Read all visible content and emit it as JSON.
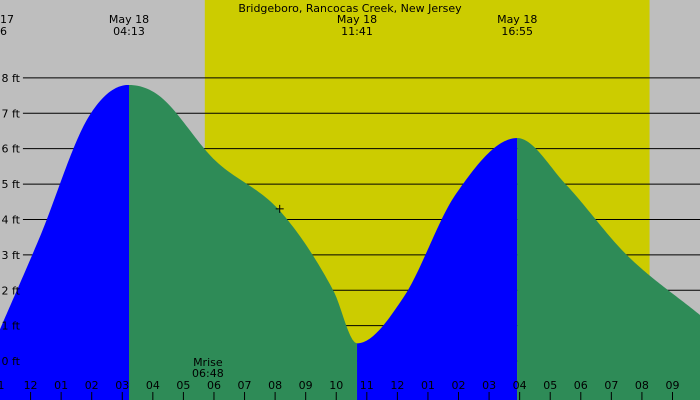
{
  "chart_data": {
    "type": "area",
    "title": "Bridgeboro, Rancocas Creek, New Jersey",
    "x_unit": "hour of day",
    "xlim": [
      0.0,
      22.9
    ],
    "ylim": [
      -1.1,
      10.2
    ],
    "y_ticks": [
      0,
      1,
      2,
      3,
      4,
      5,
      6,
      7,
      8
    ],
    "y_tick_labels": [
      "0 ft",
      "1 ft",
      "2 ft",
      "3 ft",
      "4 ft",
      "5 ft",
      "6 ft",
      "7 ft",
      "8 ft"
    ],
    "x_ticks": [
      {
        "x": 1,
        "label": "12"
      },
      {
        "x": 2,
        "label": "01"
      },
      {
        "x": 3,
        "label": "02"
      },
      {
        "x": 4,
        "label": "03"
      },
      {
        "x": 5,
        "label": "04"
      },
      {
        "x": 6,
        "label": "05"
      },
      {
        "x": 7,
        "label": "06"
      },
      {
        "x": 8,
        "label": "07"
      },
      {
        "x": 9,
        "label": "08"
      },
      {
        "x": 10,
        "label": "09"
      },
      {
        "x": 11,
        "label": "10"
      },
      {
        "x": 12,
        "label": "11"
      },
      {
        "x": 13,
        "label": "12"
      },
      {
        "x": 14,
        "label": "01"
      },
      {
        "x": 15,
        "label": "02"
      },
      {
        "x": 16,
        "label": "03"
      },
      {
        "x": 17,
        "label": "04"
      },
      {
        "x": 18,
        "label": "05"
      },
      {
        "x": 19,
        "label": "06"
      },
      {
        "x": 20,
        "label": "07"
      },
      {
        "x": 21,
        "label": "08"
      },
      {
        "x": 22,
        "label": "09"
      }
    ],
    "clipped_left_tick_label": "1",
    "daylight": {
      "start": 6.7,
      "end": 21.25
    },
    "points": [
      {
        "x": 0.0,
        "y": 0.9
      },
      {
        "x": 1.3,
        "y": 3.5
      },
      {
        "x": 2.9,
        "y": 6.9
      },
      {
        "x": 4.2,
        "y": 7.8
      },
      {
        "x": 5.2,
        "y": 7.5
      },
      {
        "x": 7.0,
        "y": 5.7
      },
      {
        "x": 9.2,
        "y": 4.2
      },
      {
        "x": 10.9,
        "y": 2.0
      },
      {
        "x": 11.68,
        "y": 0.5
      },
      {
        "x": 13.2,
        "y": 1.8
      },
      {
        "x": 14.9,
        "y": 4.7
      },
      {
        "x": 16.92,
        "y": 6.3
      },
      {
        "x": 18.5,
        "y": 5.0
      },
      {
        "x": 20.5,
        "y": 3.0
      },
      {
        "x": 22.9,
        "y": 1.3
      }
    ],
    "segments": [
      {
        "from": 0.0,
        "to": 4.22,
        "state": "rising"
      },
      {
        "from": 4.22,
        "to": 11.68,
        "state": "falling"
      },
      {
        "from": 11.68,
        "to": 16.92,
        "state": "rising"
      },
      {
        "from": 16.92,
        "to": 22.9,
        "state": "falling"
      }
    ],
    "colors": {
      "night": "#bebebe",
      "day": "#cccc00",
      "rising": "#0000ff",
      "falling": "#2e8b57",
      "gridline": "#000000"
    },
    "top_labels": [
      {
        "x": 0.0,
        "line1": "17",
        "line2": "6",
        "anchor": "start"
      },
      {
        "x": 4.22,
        "line1": "May 18",
        "line2": "04:13",
        "anchor": "middle"
      },
      {
        "x": 11.68,
        "line1": "May 18",
        "line2": "11:41",
        "anchor": "middle"
      },
      {
        "x": 16.92,
        "line1": "May 18",
        "line2": "16:55",
        "anchor": "middle"
      }
    ],
    "moon_event": {
      "x": 6.8,
      "line1": "Mrise",
      "line2": "06:48"
    },
    "crosshair": {
      "x": 9.15,
      "y": 4.3
    }
  }
}
